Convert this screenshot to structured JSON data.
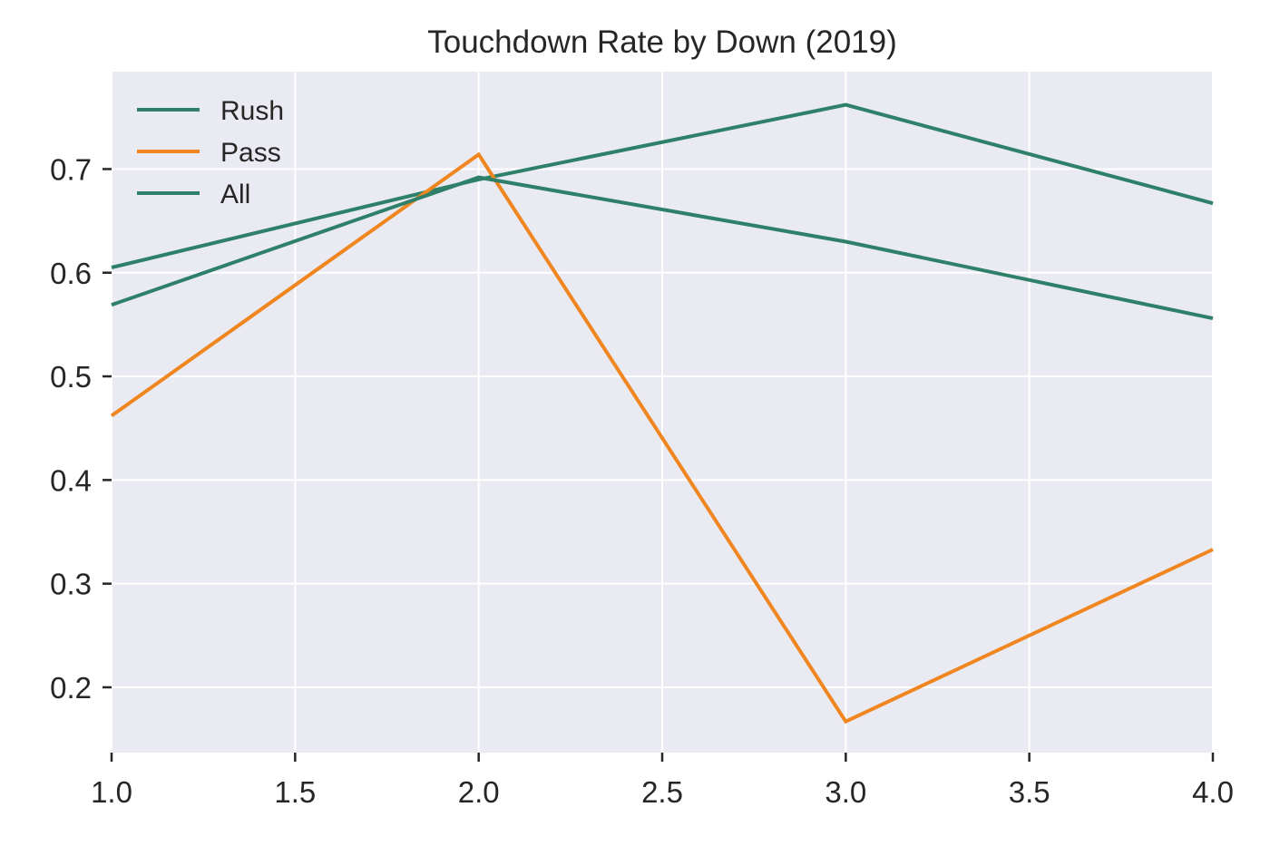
{
  "chart_data": {
    "type": "line",
    "title": "Touchdown Rate by Down (2019)",
    "xlabel": "",
    "ylabel": "",
    "xlim": [
      1.0,
      4.0
    ],
    "ylim": [
      0.137,
      0.794
    ],
    "x_ticks": [
      1.0,
      1.5,
      2.0,
      2.5,
      3.0,
      3.5,
      4.0
    ],
    "x_tick_labels": [
      "1.0",
      "1.5",
      "2.0",
      "2.5",
      "3.0",
      "3.5",
      "4.0"
    ],
    "y_ticks": [
      0.2,
      0.3,
      0.4,
      0.5,
      0.6,
      0.7
    ],
    "y_tick_labels": [
      "0.2",
      "0.3",
      "0.4",
      "0.5",
      "0.6",
      "0.7"
    ],
    "grid": true,
    "legend_position": "top-left",
    "background_color": "#eaeaf2",
    "series": [
      {
        "name": "Rush",
        "color": "#2e8068",
        "x": [
          1,
          2,
          3,
          4
        ],
        "values": [
          0.605,
          0.69,
          0.762,
          0.667
        ]
      },
      {
        "name": "Pass",
        "color": "#f0861f",
        "x": [
          1,
          2,
          3,
          4
        ],
        "values": [
          0.462,
          0.714,
          0.167,
          0.333
        ]
      },
      {
        "name": "All",
        "color": "#2e8068",
        "x": [
          1,
          2,
          3,
          4
        ],
        "values": [
          0.569,
          0.692,
          0.63,
          0.556
        ]
      }
    ]
  }
}
